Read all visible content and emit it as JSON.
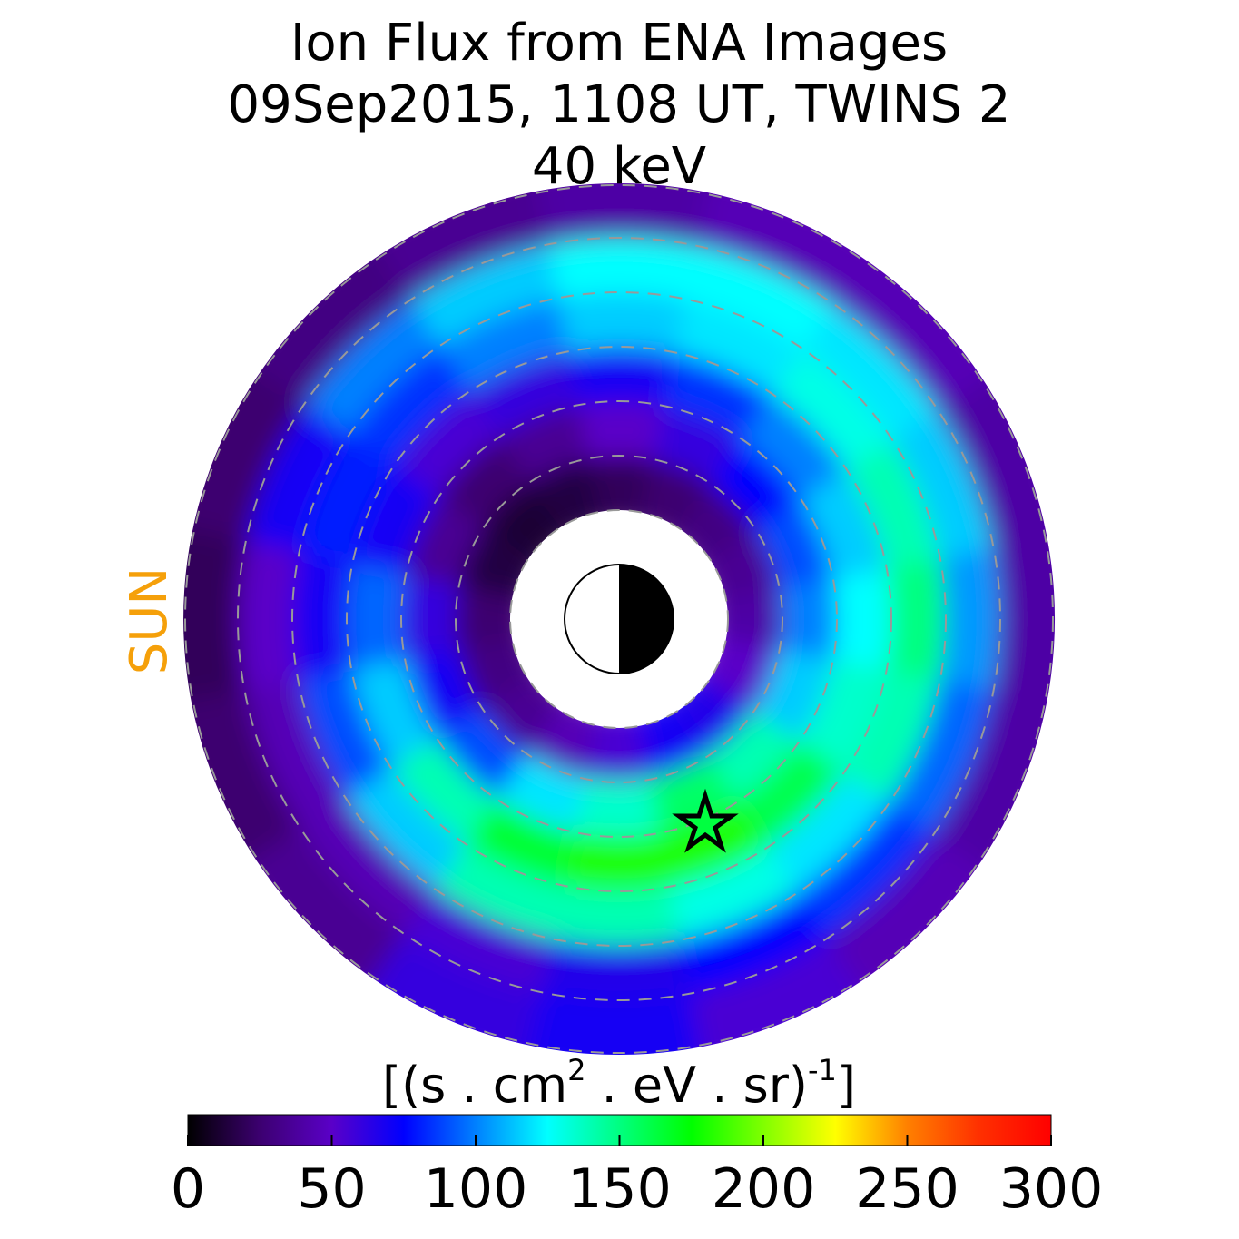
{
  "chart_data": {
    "type": "polar_heatmap",
    "title": [
      "Ion Flux from  ENA Images",
      "09Sep2015, 1108 UT,  TWINS 2",
      "40 keV"
    ],
    "sun_label": "SUN",
    "sun_color": "#f5a00a",
    "unit_label": [
      "[(s . cm",
      "2",
      "  . eV . sr)",
      "-1",
      "]"
    ],
    "colormap": [
      "#000000",
      "#3c0070",
      "#5a00c8",
      "#0000ff",
      "#0080ff",
      "#00ffff",
      "#00ff80",
      "#00ff00",
      "#80ff00",
      "#ffff00",
      "#ff8000",
      "#ff3000",
      "#ff0000"
    ],
    "clim": [
      0,
      300
    ],
    "cticks": [
      0,
      50,
      100,
      150,
      200,
      250,
      300
    ],
    "values": [
      [
        40,
        35,
        30,
        25,
        20,
        15,
        12,
        15,
        25,
        30,
        35,
        45,
        55,
        70,
        65,
        50
      ],
      [
        100,
        90,
        75,
        60,
        50,
        35,
        25,
        35,
        60,
        70,
        90,
        120,
        135,
        155,
        140,
        115
      ],
      [
        125,
        115,
        100,
        85,
        70,
        60,
        55,
        70,
        95,
        115,
        140,
        165,
        180,
        180,
        160,
        135
      ],
      [
        150,
        140,
        130,
        120,
        115,
        100,
        85,
        80,
        70,
        90,
        115,
        140,
        140,
        130,
        120,
        140
      ],
      [
        105,
        115,
        120,
        125,
        125,
        115,
        100,
        70,
        50,
        45,
        45,
        55,
        65,
        75,
        85,
        95
      ],
      [
        40,
        40,
        45,
        45,
        40,
        35,
        30,
        25,
        20,
        25,
        35,
        60,
        70,
        55,
        45,
        40
      ]
    ]
  }
}
